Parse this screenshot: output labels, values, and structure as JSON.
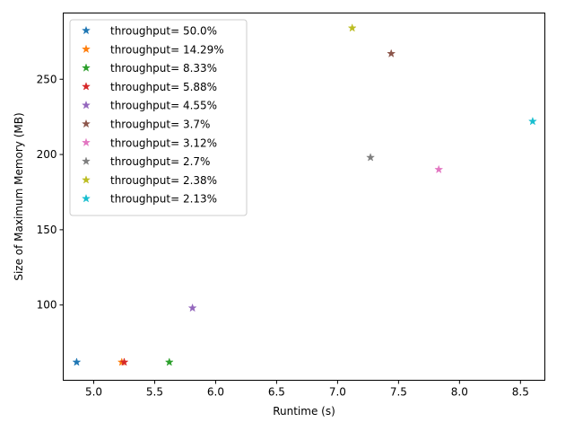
{
  "chart_data": {
    "type": "scatter",
    "title": "",
    "xlabel": "Runtime (s)",
    "ylabel": "Size of Maximum Memory (MB)",
    "xlim": [
      4.75,
      8.7
    ],
    "ylim": [
      50,
      294
    ],
    "xticks": [
      5.0,
      5.5,
      6.0,
      6.5,
      7.0,
      7.5,
      8.0,
      8.5
    ],
    "xtick_labels": [
      "5.0",
      "5.5",
      "6.0",
      "6.5",
      "7.0",
      "7.5",
      "8.0",
      "8.5"
    ],
    "yticks": [
      100,
      150,
      200,
      250
    ],
    "ytick_labels": [
      "100",
      "150",
      "200",
      "250"
    ],
    "marker": "star",
    "grid": false,
    "legend_position": "top-left",
    "series": [
      {
        "name": "throughput= 50.0%",
        "color": "#1f77b4",
        "points": [
          {
            "x": 4.86,
            "y": 62
          }
        ]
      },
      {
        "name": "throughput= 14.29%",
        "color": "#ff7f0e",
        "points": [
          {
            "x": 5.23,
            "y": 62
          }
        ]
      },
      {
        "name": "throughput= 8.33%",
        "color": "#2ca02c",
        "points": [
          {
            "x": 5.62,
            "y": 62
          }
        ]
      },
      {
        "name": "throughput= 5.88%",
        "color": "#d62728",
        "points": [
          {
            "x": 5.25,
            "y": 62
          }
        ]
      },
      {
        "name": "throughput= 4.55%",
        "color": "#9467bd",
        "points": [
          {
            "x": 5.81,
            "y": 98
          }
        ]
      },
      {
        "name": "throughput= 3.7%",
        "color": "#8c564b",
        "points": [
          {
            "x": 7.44,
            "y": 267
          }
        ]
      },
      {
        "name": "throughput= 3.12%",
        "color": "#e377c2",
        "points": [
          {
            "x": 7.83,
            "y": 190
          }
        ]
      },
      {
        "name": "throughput= 2.7%",
        "color": "#7f7f7f",
        "points": [
          {
            "x": 7.27,
            "y": 198
          }
        ]
      },
      {
        "name": "throughput= 2.38%",
        "color": "#bcbd22",
        "points": [
          {
            "x": 7.12,
            "y": 284
          }
        ]
      },
      {
        "name": "throughput= 2.13%",
        "color": "#17becf",
        "points": [
          {
            "x": 8.6,
            "y": 222
          }
        ]
      }
    ]
  }
}
